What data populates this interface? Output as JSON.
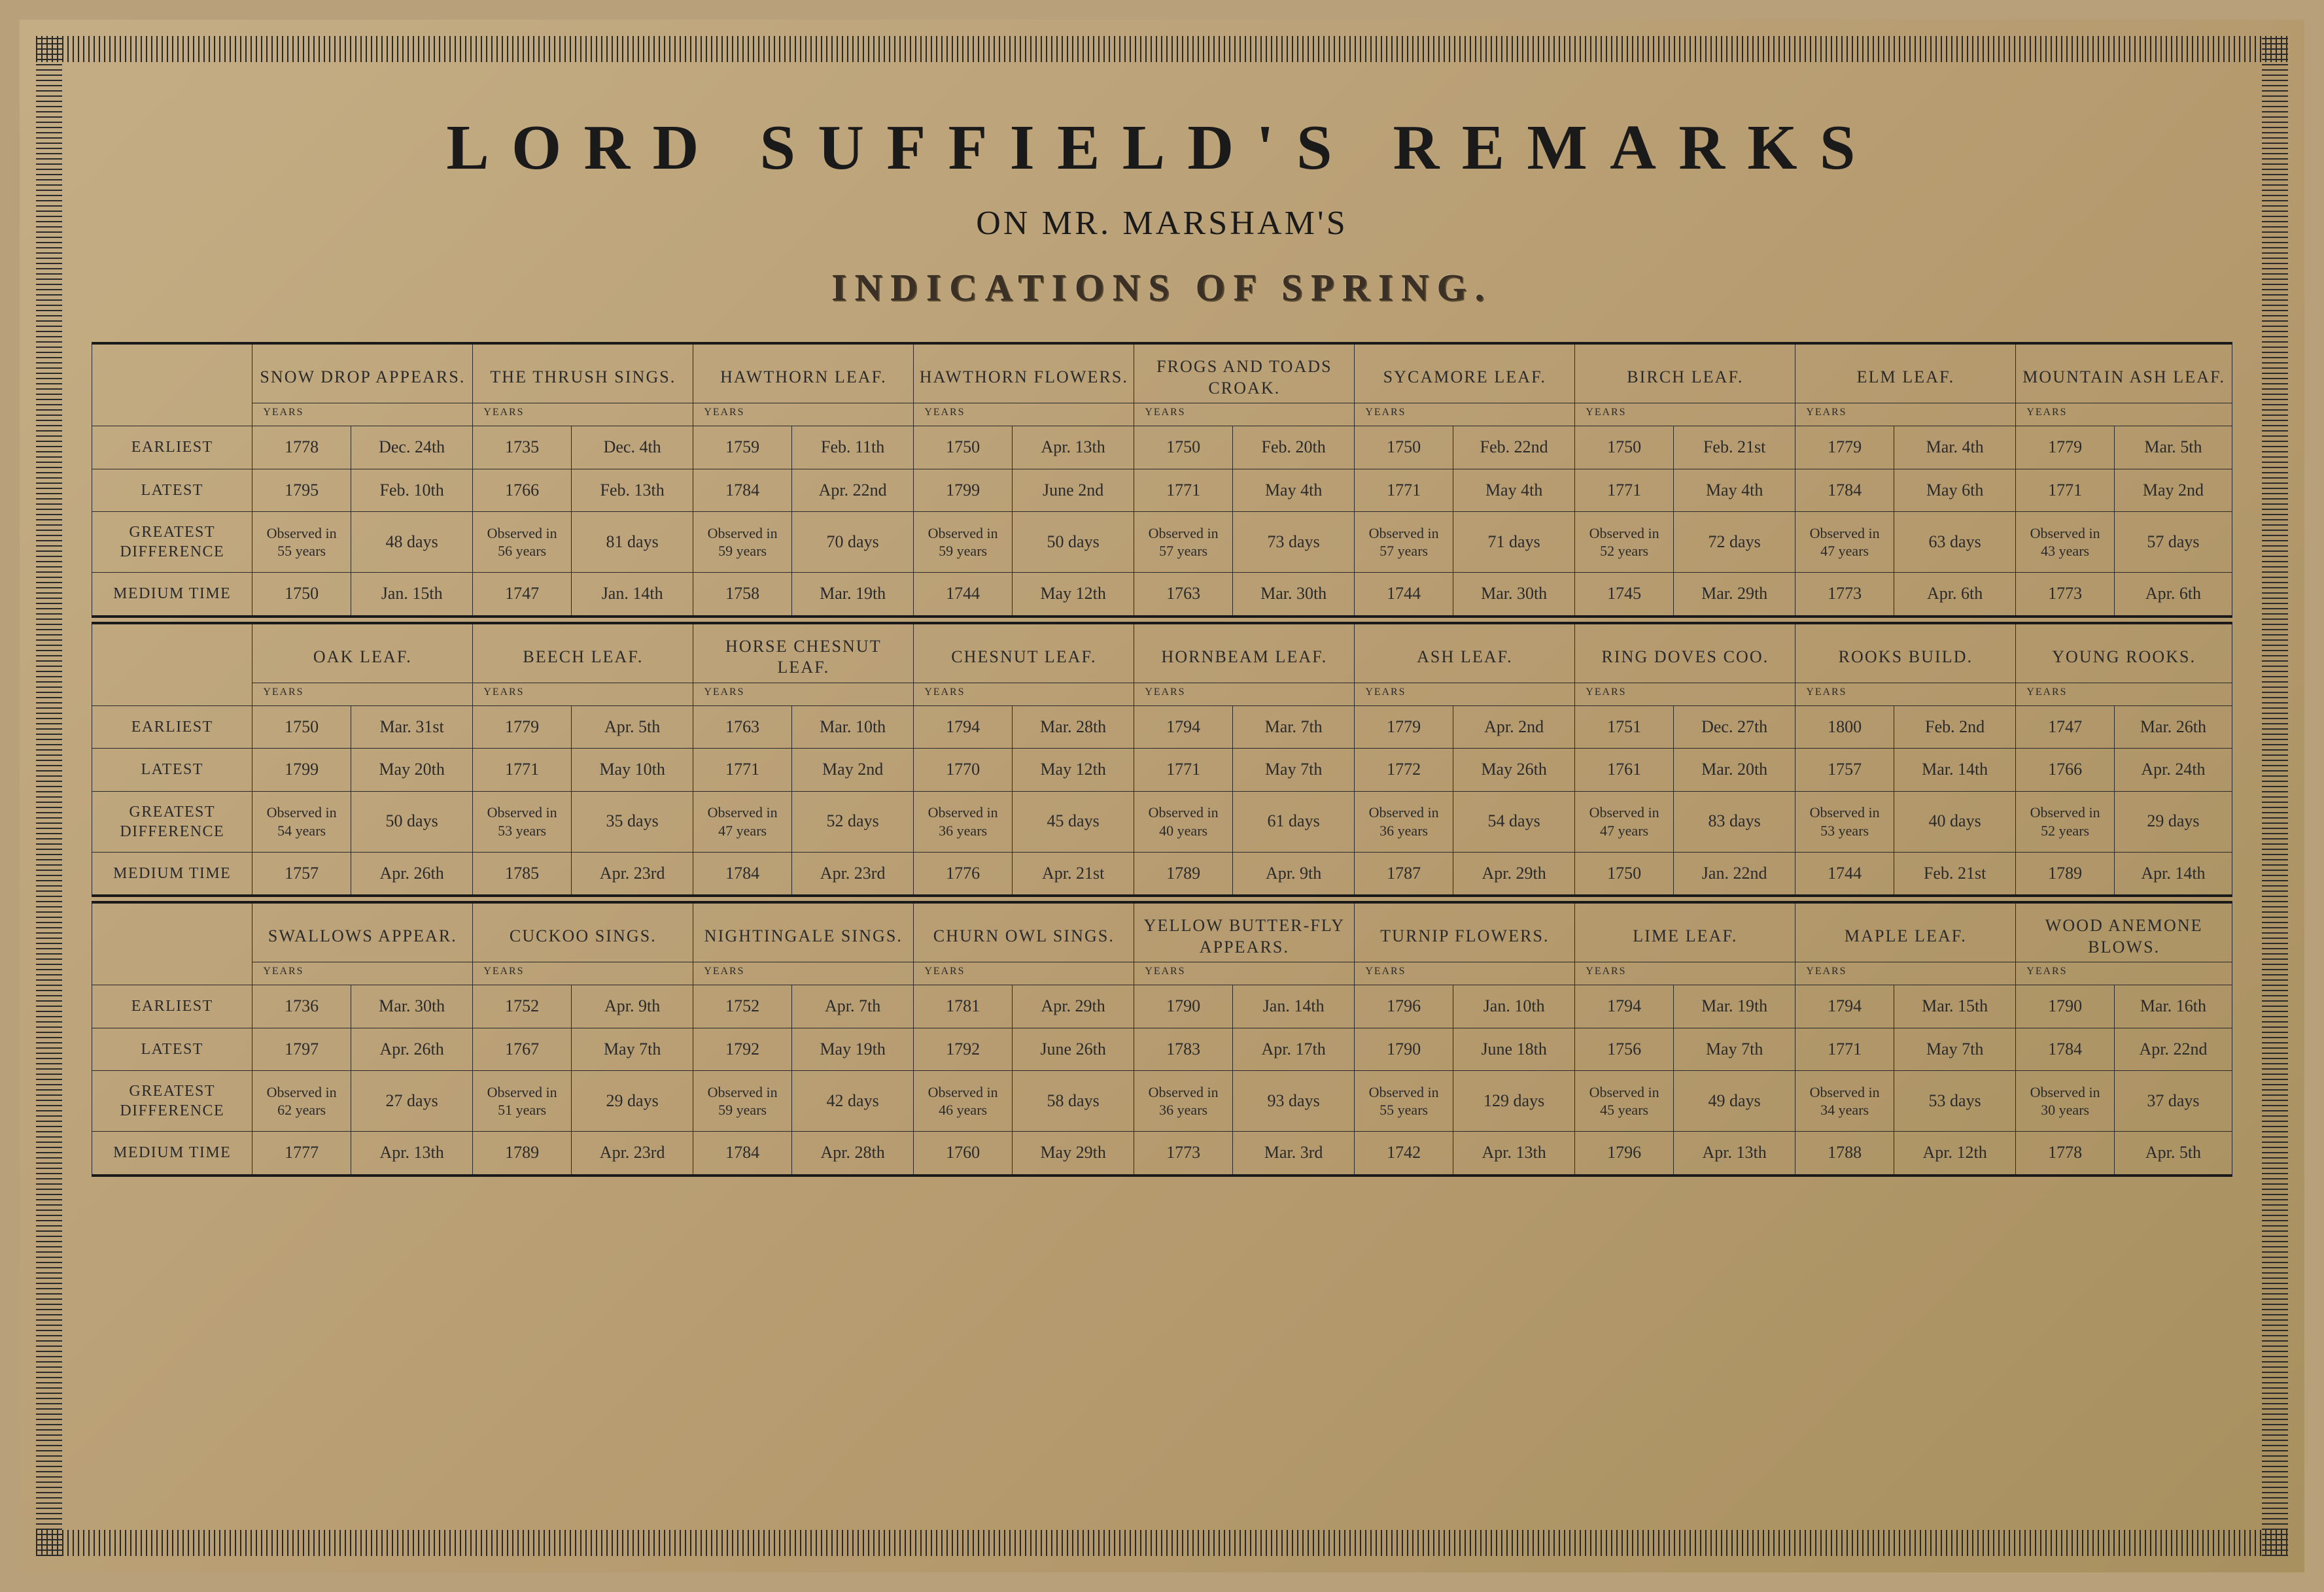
{
  "title": {
    "main": "LORD SUFFIELD'S REMARKS",
    "sub": "ON MR. MARSHAM'S",
    "fancy": "INDICATIONS OF SPRING."
  },
  "rowLabels": [
    "EARLIEST",
    "LATEST",
    "GREATEST DIFFERENCE",
    "MEDIUM TIME"
  ],
  "yearsLabel": "YEARS",
  "style": {
    "paper_bg_from": "#c4ad85",
    "paper_bg_to": "#a8905f",
    "ink": "#1a1a1a",
    "rule": "#2a2a2a",
    "title_main_pt": 98,
    "title_sub_pt": 52,
    "title_fancy_pt": 58,
    "cell_pt": 26,
    "rowlabel_pt": 24,
    "years_pt": 16
  },
  "blocks": [
    {
      "columns": [
        "SNOW DROP APPEARS.",
        "THE THRUSH SINGS.",
        "HAWTHORN LEAF.",
        "HAWTHORN FLOWERS.",
        "FROGS AND TOADS CROAK.",
        "SYCAMORE LEAF.",
        "BIRCH LEAF.",
        "ELM LEAF.",
        "MOUNTAIN ASH LEAF."
      ],
      "rows": [
        [
          [
            "1778",
            "Dec. 24th"
          ],
          [
            "1735",
            "Dec. 4th"
          ],
          [
            "1759",
            "Feb. 11th"
          ],
          [
            "1750",
            "Apr. 13th"
          ],
          [
            "1750",
            "Feb. 20th"
          ],
          [
            "1750",
            "Feb. 22nd"
          ],
          [
            "1750",
            "Feb. 21st"
          ],
          [
            "1779",
            "Mar. 4th"
          ],
          [
            "1779",
            "Mar. 5th"
          ]
        ],
        [
          [
            "1795",
            "Feb. 10th"
          ],
          [
            "1766",
            "Feb. 13th"
          ],
          [
            "1784",
            "Apr. 22nd"
          ],
          [
            "1799",
            "June 2nd"
          ],
          [
            "1771",
            "May 4th"
          ],
          [
            "1771",
            "May 4th"
          ],
          [
            "1771",
            "May 4th"
          ],
          [
            "1784",
            "May 6th"
          ],
          [
            "1771",
            "May 2nd"
          ]
        ],
        [
          [
            "Observed in 55 years",
            "48 days"
          ],
          [
            "Observed in 56 years",
            "81 days"
          ],
          [
            "Observed in 59 years",
            "70 days"
          ],
          [
            "Observed in 59 years",
            "50 days"
          ],
          [
            "Observed in 57 years",
            "73 days"
          ],
          [
            "Observed in 57 years",
            "71 days"
          ],
          [
            "Observed in 52 years",
            "72 days"
          ],
          [
            "Observed in 47 years",
            "63 days"
          ],
          [
            "Observed in 43 years",
            "57 days"
          ]
        ],
        [
          [
            "1750",
            "Jan. 15th"
          ],
          [
            "1747",
            "Jan. 14th"
          ],
          [
            "1758",
            "Mar. 19th"
          ],
          [
            "1744",
            "May 12th"
          ],
          [
            "1763",
            "Mar. 30th"
          ],
          [
            "1744",
            "Mar. 30th"
          ],
          [
            "1745",
            "Mar. 29th"
          ],
          [
            "1773",
            "Apr. 6th"
          ],
          [
            "1773",
            "Apr. 6th"
          ]
        ]
      ]
    },
    {
      "columns": [
        "OAK LEAF.",
        "BEECH LEAF.",
        "HORSE CHESNUT LEAF.",
        "CHESNUT LEAF.",
        "HORNBEAM LEAF.",
        "ASH LEAF.",
        "RING DOVES COO.",
        "ROOKS BUILD.",
        "YOUNG ROOKS."
      ],
      "rows": [
        [
          [
            "1750",
            "Mar. 31st"
          ],
          [
            "1779",
            "Apr. 5th"
          ],
          [
            "1763",
            "Mar. 10th"
          ],
          [
            "1794",
            "Mar. 28th"
          ],
          [
            "1794",
            "Mar. 7th"
          ],
          [
            "1779",
            "Apr. 2nd"
          ],
          [
            "1751",
            "Dec. 27th"
          ],
          [
            "1800",
            "Feb. 2nd"
          ],
          [
            "1747",
            "Mar. 26th"
          ]
        ],
        [
          [
            "1799",
            "May 20th"
          ],
          [
            "1771",
            "May 10th"
          ],
          [
            "1771",
            "May 2nd"
          ],
          [
            "1770",
            "May 12th"
          ],
          [
            "1771",
            "May 7th"
          ],
          [
            "1772",
            "May 26th"
          ],
          [
            "1761",
            "Mar. 20th"
          ],
          [
            "1757",
            "Mar. 14th"
          ],
          [
            "1766",
            "Apr. 24th"
          ]
        ],
        [
          [
            "Observed in 54 years",
            "50 days"
          ],
          [
            "Observed in 53 years",
            "35 days"
          ],
          [
            "Observed in 47 years",
            "52 days"
          ],
          [
            "Observed in 36 years",
            "45 days"
          ],
          [
            "Observed in 40 years",
            "61 days"
          ],
          [
            "Observed in 36 years",
            "54 days"
          ],
          [
            "Observed in 47 years",
            "83 days"
          ],
          [
            "Observed in 53 years",
            "40 days"
          ],
          [
            "Observed in 52 years",
            "29 days"
          ]
        ],
        [
          [
            "1757",
            "Apr. 26th"
          ],
          [
            "1785",
            "Apr. 23rd"
          ],
          [
            "1784",
            "Apr. 23rd"
          ],
          [
            "1776",
            "Apr. 21st"
          ],
          [
            "1789",
            "Apr. 9th"
          ],
          [
            "1787",
            "Apr. 29th"
          ],
          [
            "1750",
            "Jan. 22nd"
          ],
          [
            "1744",
            "Feb. 21st"
          ],
          [
            "1789",
            "Apr. 14th"
          ]
        ]
      ]
    },
    {
      "columns": [
        "SWALLOWS APPEAR.",
        "CUCKOO SINGS.",
        "NIGHTINGALE SINGS.",
        "CHURN OWL SINGS.",
        "YELLOW BUTTER-FLY APPEARS.",
        "TURNIP FLOWERS.",
        "LIME LEAF.",
        "MAPLE LEAF.",
        "WOOD ANEMONE BLOWS."
      ],
      "rows": [
        [
          [
            "1736",
            "Mar. 30th"
          ],
          [
            "1752",
            "Apr. 9th"
          ],
          [
            "1752",
            "Apr. 7th"
          ],
          [
            "1781",
            "Apr. 29th"
          ],
          [
            "1790",
            "Jan. 14th"
          ],
          [
            "1796",
            "Jan. 10th"
          ],
          [
            "1794",
            "Mar. 19th"
          ],
          [
            "1794",
            "Mar. 15th"
          ],
          [
            "1790",
            "Mar. 16th"
          ]
        ],
        [
          [
            "1797",
            "Apr. 26th"
          ],
          [
            "1767",
            "May 7th"
          ],
          [
            "1792",
            "May 19th"
          ],
          [
            "1792",
            "June 26th"
          ],
          [
            "1783",
            "Apr. 17th"
          ],
          [
            "1790",
            "June 18th"
          ],
          [
            "1756",
            "May 7th"
          ],
          [
            "1771",
            "May 7th"
          ],
          [
            "1784",
            "Apr. 22nd"
          ]
        ],
        [
          [
            "Observed in 62 years",
            "27 days"
          ],
          [
            "Observed in 51 years",
            "29 days"
          ],
          [
            "Observed in 59 years",
            "42 days"
          ],
          [
            "Observed in 46 years",
            "58 days"
          ],
          [
            "Observed in 36 years",
            "93 days"
          ],
          [
            "Observed in 55 years",
            "129 days"
          ],
          [
            "Observed in 45 years",
            "49 days"
          ],
          [
            "Observed in 34 years",
            "53 days"
          ],
          [
            "Observed in 30 years",
            "37 days"
          ]
        ],
        [
          [
            "1777",
            "Apr. 13th"
          ],
          [
            "1789",
            "Apr. 23rd"
          ],
          [
            "1784",
            "Apr. 28th"
          ],
          [
            "1760",
            "May 29th"
          ],
          [
            "1773",
            "Mar. 3rd"
          ],
          [
            "1742",
            "Apr. 13th"
          ],
          [
            "1796",
            "Apr. 13th"
          ],
          [
            "1788",
            "Apr. 12th"
          ],
          [
            "1778",
            "Apr. 5th"
          ]
        ]
      ]
    }
  ]
}
